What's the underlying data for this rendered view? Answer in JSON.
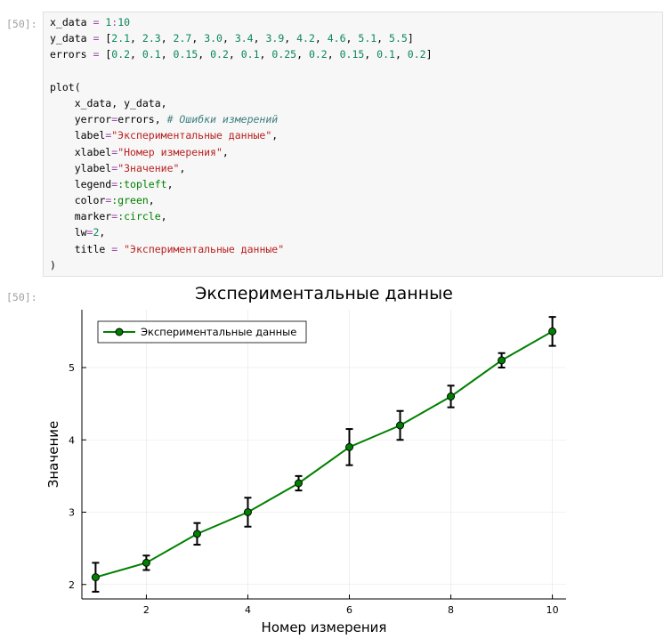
{
  "input_prompt": "[50]:",
  "output_prompt": "[50]:",
  "code_lines": [
    [
      {
        "t": "x_data "
      },
      {
        "t": "=",
        "c": "op"
      },
      {
        "t": " "
      },
      {
        "t": "1",
        "c": "num"
      },
      {
        "t": ":",
        "c": "op"
      },
      {
        "t": "10",
        "c": "num"
      }
    ],
    [
      {
        "t": "y_data "
      },
      {
        "t": "=",
        "c": "op"
      },
      {
        "t": " ["
      },
      {
        "t": "2.1",
        "c": "num"
      },
      {
        "t": ", "
      },
      {
        "t": "2.3",
        "c": "num"
      },
      {
        "t": ", "
      },
      {
        "t": "2.7",
        "c": "num"
      },
      {
        "t": ", "
      },
      {
        "t": "3.0",
        "c": "num"
      },
      {
        "t": ", "
      },
      {
        "t": "3.4",
        "c": "num"
      },
      {
        "t": ", "
      },
      {
        "t": "3.9",
        "c": "num"
      },
      {
        "t": ", "
      },
      {
        "t": "4.2",
        "c": "num"
      },
      {
        "t": ", "
      },
      {
        "t": "4.6",
        "c": "num"
      },
      {
        "t": ", "
      },
      {
        "t": "5.1",
        "c": "num"
      },
      {
        "t": ", "
      },
      {
        "t": "5.5",
        "c": "num"
      },
      {
        "t": "]"
      }
    ],
    [
      {
        "t": "errors "
      },
      {
        "t": "=",
        "c": "op"
      },
      {
        "t": " ["
      },
      {
        "t": "0.2",
        "c": "num"
      },
      {
        "t": ", "
      },
      {
        "t": "0.1",
        "c": "num"
      },
      {
        "t": ", "
      },
      {
        "t": "0.15",
        "c": "num"
      },
      {
        "t": ", "
      },
      {
        "t": "0.2",
        "c": "num"
      },
      {
        "t": ", "
      },
      {
        "t": "0.1",
        "c": "num"
      },
      {
        "t": ", "
      },
      {
        "t": "0.25",
        "c": "num"
      },
      {
        "t": ", "
      },
      {
        "t": "0.2",
        "c": "num"
      },
      {
        "t": ", "
      },
      {
        "t": "0.15",
        "c": "num"
      },
      {
        "t": ", "
      },
      {
        "t": "0.1",
        "c": "num"
      },
      {
        "t": ", "
      },
      {
        "t": "0.2",
        "c": "num"
      },
      {
        "t": "]"
      }
    ],
    [],
    [
      {
        "t": "plot("
      }
    ],
    [
      {
        "t": "    x_data, y_data,"
      }
    ],
    [
      {
        "t": "    yerror"
      },
      {
        "t": "=",
        "c": "op"
      },
      {
        "t": "errors, "
      },
      {
        "t": "# Ошибки измерений",
        "c": "com"
      }
    ],
    [
      {
        "t": "    label"
      },
      {
        "t": "=",
        "c": "op"
      },
      {
        "t": "\"Экспериментальные данные\"",
        "c": "str"
      },
      {
        "t": ","
      }
    ],
    [
      {
        "t": "    xlabel"
      },
      {
        "t": "=",
        "c": "op"
      },
      {
        "t": "\"Номер измерения\"",
        "c": "str"
      },
      {
        "t": ","
      }
    ],
    [
      {
        "t": "    ylabel"
      },
      {
        "t": "=",
        "c": "op"
      },
      {
        "t": "\"Значение\"",
        "c": "str"
      },
      {
        "t": ","
      }
    ],
    [
      {
        "t": "    legend"
      },
      {
        "t": "=",
        "c": "op"
      },
      {
        "t": ":topleft",
        "c": "kw"
      },
      {
        "t": ","
      }
    ],
    [
      {
        "t": "    color"
      },
      {
        "t": "=",
        "c": "op"
      },
      {
        "t": ":green",
        "c": "kw"
      },
      {
        "t": ","
      }
    ],
    [
      {
        "t": "    marker"
      },
      {
        "t": "=",
        "c": "op"
      },
      {
        "t": ":circle",
        "c": "kw"
      },
      {
        "t": ","
      }
    ],
    [
      {
        "t": "    lw"
      },
      {
        "t": "=",
        "c": "op"
      },
      {
        "t": "2",
        "c": "num"
      },
      {
        "t": ","
      }
    ],
    [
      {
        "t": "    title "
      },
      {
        "t": "=",
        "c": "op"
      },
      {
        "t": " "
      },
      {
        "t": "\"Экспериментальные данные\"",
        "c": "str"
      }
    ],
    [
      {
        "t": ")"
      }
    ]
  ],
  "chart_data": {
    "type": "line",
    "title": "Экспериментальные данные",
    "xlabel": "Номер измерения",
    "ylabel": "Значение",
    "x": [
      1,
      2,
      3,
      4,
      5,
      6,
      7,
      8,
      9,
      10
    ],
    "series": [
      {
        "name": "Экспериментальные данные",
        "values": [
          2.1,
          2.3,
          2.7,
          3.0,
          3.4,
          3.9,
          4.2,
          4.6,
          5.1,
          5.5
        ],
        "errors": [
          0.2,
          0.1,
          0.15,
          0.2,
          0.1,
          0.25,
          0.2,
          0.15,
          0.1,
          0.2
        ],
        "color": "#008000",
        "marker": "circle"
      }
    ],
    "xticks": [
      2,
      4,
      6,
      8,
      10
    ],
    "yticks": [
      2,
      3,
      4,
      5
    ],
    "xlim": [
      0.73,
      10.27
    ],
    "ylim": [
      1.8,
      5.8
    ],
    "grid": true,
    "legend_position": "top-left"
  }
}
